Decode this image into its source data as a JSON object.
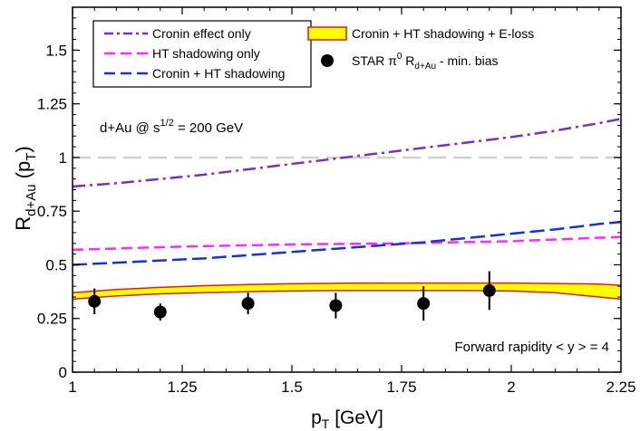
{
  "colors": {
    "cronin": "#7b2fbe",
    "ht": "#ff2bff",
    "cronin_ht": "#1432d6",
    "band_fill": "#ffff00",
    "band_edge": "#e31a1c",
    "data": "#000000",
    "reference": "#d0d0d0"
  },
  "annotations": {
    "collision_prefix": "d+Au @ s",
    "collision_sup": "1/2",
    "collision_suffix": " = 200 GeV",
    "rapidity": "Forward rapidity < y > = 4"
  },
  "legend": {
    "cronin": "Cronin effect only",
    "ht": "HT shadowing only",
    "cronin_ht": "Cronin + HT shadowing",
    "band": "Cronin + HT shadowing + E-loss",
    "star_prefix": "STAR π",
    "star_sup": "0",
    "star_mid": " R",
    "star_sub": "d+Au",
    "star_suffix": " - min. bias"
  },
  "axes": {
    "x_label_main": "p",
    "x_label_sub": "T",
    "x_label_suffix": " [GeV]",
    "y_label_main": "R",
    "y_label_sub": "d+Au",
    "y_label_paren": "(p",
    "y_label_paren_sub": "T",
    "y_label_close": ")"
  },
  "chart_data": {
    "type": "line",
    "xlim": [
      1,
      2.25
    ],
    "ylim": [
      0,
      1.7
    ],
    "xticks": [
      1,
      1.25,
      1.5,
      1.75,
      2,
      2.25
    ],
    "xtick_labels": [
      "1",
      "1.25",
      "1.5",
      "1.75",
      "2",
      "2.25"
    ],
    "yticks": [
      0,
      0.25,
      0.5,
      0.75,
      1,
      1.25,
      1.5
    ],
    "ytick_labels": [
      "0",
      "0.25",
      "0.5",
      "0.75",
      "1",
      "1.25",
      "1.5"
    ],
    "xlabel": "pT [GeV]",
    "ylabel": "Rd+Au (pT)",
    "reference_line": {
      "y": 1.0,
      "style": "dashed"
    },
    "series": [
      {
        "name": "Cronin effect only",
        "style": "dash-dot",
        "x": [
          1.0,
          1.1,
          1.2,
          1.3,
          1.4,
          1.5,
          1.6,
          1.7,
          1.8,
          1.9,
          2.0,
          2.1,
          2.2,
          2.25
        ],
        "y": [
          0.865,
          0.88,
          0.9,
          0.92,
          0.945,
          0.97,
          0.995,
          1.02,
          1.045,
          1.07,
          1.095,
          1.125,
          1.16,
          1.18
        ]
      },
      {
        "name": "HT shadowing only",
        "style": "dashed",
        "x": [
          1.0,
          1.25,
          1.5,
          1.75,
          2.0,
          2.25
        ],
        "y": [
          0.57,
          0.585,
          0.595,
          0.6,
          0.61,
          0.63
        ]
      },
      {
        "name": "Cronin + HT shadowing",
        "style": "dashed",
        "x": [
          1.0,
          1.1,
          1.2,
          1.3,
          1.4,
          1.5,
          1.6,
          1.7,
          1.8,
          1.9,
          2.0,
          2.1,
          2.2,
          2.25
        ],
        "y": [
          0.5,
          0.51,
          0.52,
          0.53,
          0.545,
          0.56,
          0.575,
          0.59,
          0.605,
          0.625,
          0.645,
          0.665,
          0.69,
          0.7
        ]
      }
    ],
    "band": {
      "name": "Cronin + HT shadowing + E-loss",
      "x": [
        1.0,
        1.1,
        1.2,
        1.3,
        1.4,
        1.5,
        1.6,
        1.7,
        1.8,
        1.9,
        2.0,
        2.1,
        2.2,
        2.25
      ],
      "lower": [
        0.34,
        0.355,
        0.365,
        0.37,
        0.375,
        0.378,
        0.38,
        0.38,
        0.38,
        0.38,
        0.378,
        0.37,
        0.35,
        0.34
      ],
      "upper": [
        0.37,
        0.385,
        0.395,
        0.403,
        0.408,
        0.412,
        0.414,
        0.415,
        0.415,
        0.415,
        0.415,
        0.413,
        0.41,
        0.405
      ]
    },
    "points": {
      "name": "STAR π0 Rd+Au - min. bias",
      "x": [
        1.05,
        1.2,
        1.4,
        1.6,
        1.8,
        1.95
      ],
      "y": [
        0.33,
        0.28,
        0.32,
        0.31,
        0.32,
        0.38
      ],
      "err": [
        0.06,
        0.04,
        0.05,
        0.06,
        0.08,
        0.09
      ]
    }
  }
}
